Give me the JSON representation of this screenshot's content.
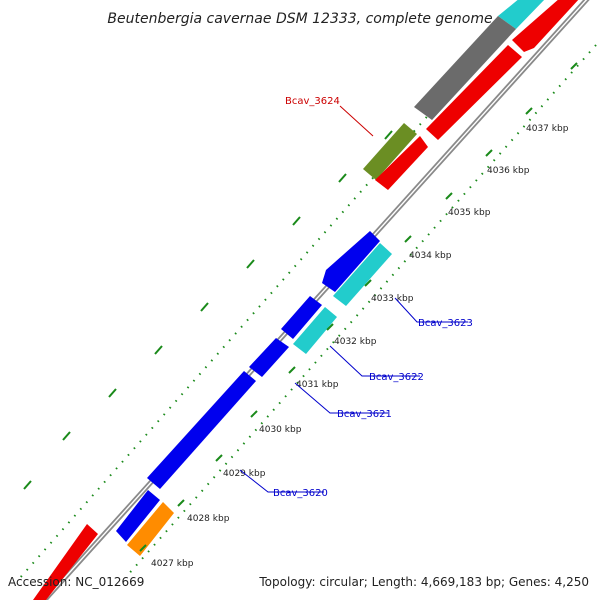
{
  "title": "Beutenbergia cavernae DSM 12333, complete genome",
  "footer": {
    "accession": "Accession: NC_012669",
    "topology": "Topology: circular; Length: 4,669,183 bp; Genes: 4,250"
  },
  "colors": {
    "backbone": "#8a8a8a",
    "cds_blue": "#0000ee",
    "cds_cyan": "#22cccc",
    "cds_red": "#ee0000",
    "cds_gray": "#6b6b6b",
    "cds_olive": "#6b8e23",
    "cds_orange": "#ff8c00",
    "ticks": "#1a8a1a",
    "label_red": "#cc0000",
    "label_blue": "#0000cc"
  },
  "kbp_labels": [
    "4027 kbp",
    "4028 kbp",
    "4029 kbp",
    "4030 kbp",
    "4031 kbp",
    "4032 kbp",
    "4033 kbp",
    "4034 kbp",
    "4035 kbp",
    "4036 kbp",
    "4037 kbp"
  ],
  "gene_labels": [
    "Bcav_3624",
    "Bcav_3623",
    "Bcav_3622",
    "Bcav_3621",
    "Bcav_3620"
  ]
}
